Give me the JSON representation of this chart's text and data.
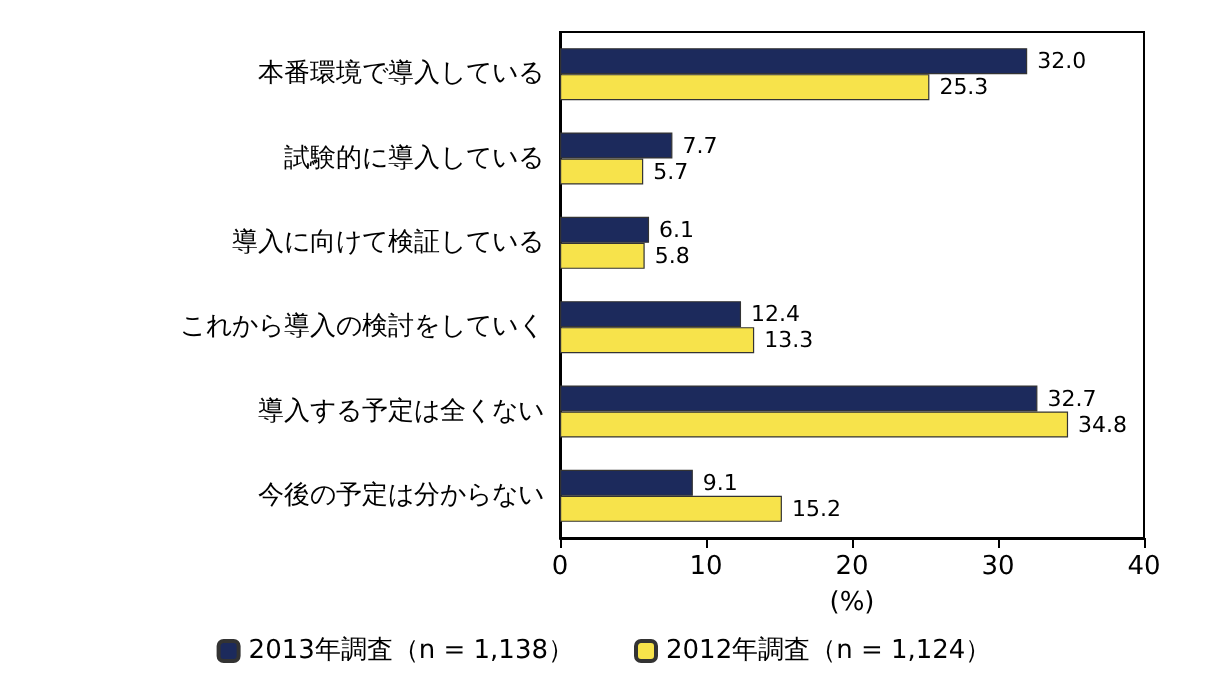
{
  "chart_data": {
    "type": "bar",
    "orientation": "horizontal",
    "categories": [
      "本番環境で導入している",
      "試験的に導入している",
      "導入に向けて検証している",
      "これから導入の検討をしていく",
      "導入する予定は全くない",
      "今後の予定は分からない"
    ],
    "series": [
      {
        "name": "2013年調査（n = 1,138）",
        "color": "#1c2a5c",
        "values": [
          32.0,
          7.7,
          6.1,
          12.4,
          32.7,
          9.1
        ],
        "value_labels": [
          "32.0",
          "7.7",
          "6.1",
          "12.4",
          "32.7",
          "9.1"
        ]
      },
      {
        "name": "2012年調査（n = 1,124）",
        "color": "#f7e34b",
        "values": [
          25.3,
          5.7,
          5.8,
          13.3,
          34.8,
          15.2
        ],
        "value_labels": [
          "25.3",
          "5.7",
          "5.8",
          "13.3",
          "34.8",
          "15.2"
        ]
      }
    ],
    "xlim": [
      0,
      40
    ],
    "xticks": [
      0,
      10,
      20,
      30,
      40
    ],
    "xlabel": "(%)",
    "legend": "bottom",
    "grid": false
  }
}
